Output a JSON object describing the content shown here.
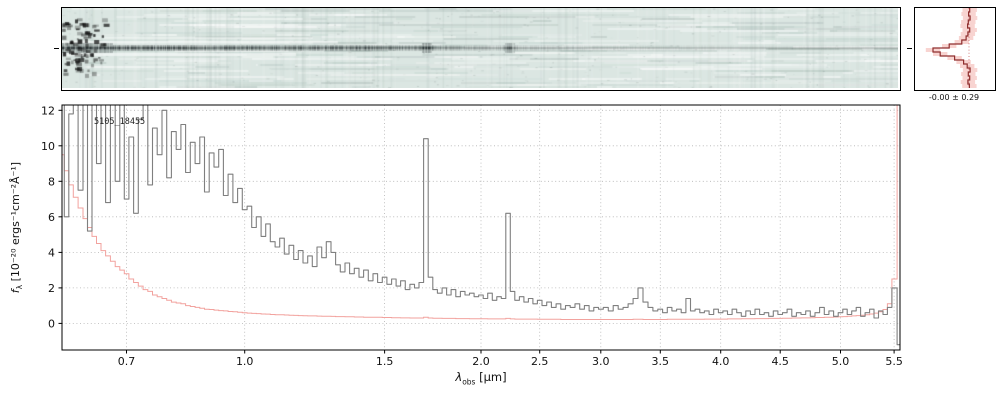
{
  "colors": {
    "spectrum": "#7f7f7f",
    "uncertainty": "#f2a29e",
    "profile_line": "#8f2f2f",
    "profile_fill": "#f6c6c2",
    "profile_zero": "#cc7070",
    "heatmap_bg": "#dbe6e2",
    "heatmap_dark": "#20282a",
    "grid": "#b3b3b3",
    "spine": "#000000"
  },
  "labels": {
    "xlabel": {
      "sym": "λ",
      "sub": "obs",
      "units": " [μm]"
    },
    "ylabel": {
      "sym": "f",
      "sub": "λ",
      "units": " [10⁻²⁰ ergs⁻¹cm⁻²Å⁻¹]"
    }
  },
  "chart_data": [
    {
      "type": "heatmap",
      "name": "2d-spectrum",
      "description": "Drizzled 2D slitless prism spectrum; pale teal background noise with dark source trace along the central row, strongest from 0.6–2.5 um, dark knots at the emission-line wavelengths and heavy dark residuals at the blue edge",
      "x_range_um": [
        0.6,
        5.55
      ],
      "trace_center_row_frac": 0.5,
      "emission_knots_um": [
        1.72,
        2.25
      ]
    },
    {
      "type": "line",
      "title": "5105_18455",
      "xlabel": "lambda_obs [um]",
      "ylabel": "f_lambda [1e-20 erg s^-1 cm^-2 A^-1]",
      "xlim": [
        0.6,
        5.55
      ],
      "ylim": [
        -1.5,
        12.3
      ],
      "x_ticks": [
        0.7,
        1.0,
        1.5,
        2.0,
        2.5,
        3.0,
        3.5,
        4.0,
        4.5,
        5.0,
        5.5
      ],
      "y_ticks": [
        0,
        2,
        4,
        6,
        8,
        10,
        12
      ],
      "x_scale_anchors": {
        "wavelength": [
          0.6,
          0.7,
          1.0,
          1.5,
          2.0,
          2.5,
          3.0,
          3.5,
          4.0,
          4.5,
          5.0,
          5.5,
          5.55
        ],
        "fraction": [
          0.0,
          0.077,
          0.218,
          0.385,
          0.5,
          0.57,
          0.643,
          0.714,
          0.786,
          0.857,
          0.929,
          0.993,
          1.0
        ]
      },
      "series": [
        {
          "name": "flux",
          "color_key": "spectrum",
          "x": [
            0.6,
            0.607,
            0.614,
            0.621,
            0.629,
            0.636,
            0.643,
            0.65,
            0.657,
            0.664,
            0.671,
            0.679,
            0.686,
            0.693,
            0.7,
            0.712,
            0.724,
            0.736,
            0.748,
            0.76,
            0.772,
            0.784,
            0.796,
            0.808,
            0.82,
            0.832,
            0.844,
            0.856,
            0.868,
            0.88,
            0.892,
            0.904,
            0.916,
            0.928,
            0.94,
            0.952,
            0.964,
            0.976,
            0.988,
            1.0,
            1.017,
            1.033,
            1.05,
            1.067,
            1.083,
            1.1,
            1.117,
            1.133,
            1.15,
            1.167,
            1.183,
            1.2,
            1.217,
            1.233,
            1.25,
            1.267,
            1.283,
            1.3,
            1.317,
            1.333,
            1.35,
            1.367,
            1.383,
            1.4,
            1.417,
            1.433,
            1.45,
            1.467,
            1.483,
            1.5,
            1.524,
            1.548,
            1.571,
            1.595,
            1.619,
            1.643,
            1.667,
            1.69,
            1.714,
            1.738,
            1.762,
            1.786,
            1.81,
            1.833,
            1.857,
            1.881,
            1.905,
            1.929,
            1.952,
            1.976,
            2.0,
            2.038,
            2.077,
            2.115,
            2.154,
            2.192,
            2.231,
            2.269,
            2.308,
            2.346,
            2.385,
            2.423,
            2.462,
            2.5,
            2.538,
            2.577,
            2.615,
            2.654,
            2.692,
            2.731,
            2.769,
            2.808,
            2.846,
            2.885,
            2.923,
            2.962,
            3.0,
            3.042,
            3.083,
            3.125,
            3.167,
            3.208,
            3.25,
            3.292,
            3.333,
            3.375,
            3.417,
            3.458,
            3.5,
            3.538,
            3.577,
            3.615,
            3.654,
            3.692,
            3.731,
            3.769,
            3.808,
            3.846,
            3.885,
            3.923,
            3.962,
            4.0,
            4.038,
            4.077,
            4.115,
            4.154,
            4.192,
            4.231,
            4.269,
            4.308,
            4.346,
            4.385,
            4.423,
            4.462,
            4.5,
            4.538,
            4.577,
            4.615,
            4.654,
            4.692,
            4.731,
            4.769,
            4.808,
            4.846,
            4.885,
            4.923,
            4.962,
            5.0,
            5.042,
            5.083,
            5.125,
            5.167,
            5.208,
            5.25,
            5.292,
            5.333,
            5.375,
            5.417,
            5.458,
            5.5,
            5.55
          ],
          "y": [
            12.5,
            6.0,
            11.8,
            13.0,
            7.5,
            12.8,
            5.2,
            13.5,
            9.0,
            12.6,
            6.8,
            13.2,
            8.0,
            12.9,
            7.0,
            10.5,
            6.2,
            11.5,
            12.3,
            7.8,
            11.0,
            9.5,
            12.0,
            8.2,
            10.8,
            9.8,
            11.2,
            8.5,
            10.2,
            9.0,
            10.5,
            7.4,
            9.6,
            8.8,
            9.8,
            7.2,
            8.4,
            6.8,
            7.6,
            6.4,
            6.6,
            5.4,
            6.0,
            4.9,
            5.6,
            4.6,
            4.3,
            4.8,
            3.9,
            4.4,
            3.6,
            4.1,
            3.4,
            3.8,
            3.2,
            4.3,
            3.7,
            4.6,
            4.0,
            3.3,
            2.9,
            3.4,
            2.8,
            3.1,
            2.6,
            3.0,
            2.4,
            2.8,
            2.3,
            2.6,
            2.2,
            2.5,
            2.1,
            2.4,
            1.9,
            2.2,
            2.0,
            2.3,
            10.4,
            2.6,
            1.9,
            1.7,
            2.0,
            1.6,
            1.9,
            1.5,
            1.8,
            1.6,
            1.7,
            1.5,
            1.6,
            1.4,
            1.7,
            1.3,
            1.5,
            1.4,
            6.2,
            1.8,
            1.3,
            1.5,
            1.2,
            1.4,
            1.1,
            1.3,
            1.0,
            1.2,
            0.9,
            1.1,
            0.8,
            1.0,
            0.9,
            1.1,
            0.8,
            1.0,
            0.7,
            0.9,
            0.8,
            0.9,
            0.7,
            1.0,
            0.8,
            0.9,
            1.1,
            1.4,
            2.0,
            1.2,
            0.9,
            0.7,
            0.8,
            0.6,
            0.9,
            0.7,
            0.8,
            0.6,
            1.4,
            0.7,
            0.8,
            0.6,
            0.7,
            0.5,
            0.8,
            0.6,
            0.7,
            0.5,
            0.8,
            0.6,
            0.4,
            0.7,
            0.5,
            0.8,
            0.5,
            0.6,
            0.4,
            0.7,
            0.5,
            0.6,
            0.8,
            0.4,
            0.6,
            0.5,
            0.7,
            0.4,
            0.6,
            0.9,
            0.5,
            0.7,
            0.4,
            0.6,
            0.8,
            0.5,
            0.7,
            0.9,
            0.4,
            0.6,
            0.8,
            0.3,
            0.7,
            0.5,
            0.9,
            2.0,
            -1.2
          ]
        },
        {
          "name": "uncertainty",
          "color_key": "uncertainty",
          "y": [
            9.5,
            8.6,
            7.8,
            7.1,
            6.5,
            5.9,
            5.4,
            4.9,
            4.5,
            4.1,
            3.8,
            3.5,
            3.2,
            3.0,
            2.8,
            2.5,
            2.3,
            2.1,
            1.9,
            1.8,
            1.6,
            1.5,
            1.4,
            1.3,
            1.2,
            1.15,
            1.1,
            1.0,
            0.95,
            0.9,
            0.85,
            0.8,
            0.78,
            0.75,
            0.72,
            0.7,
            0.67,
            0.65,
            0.63,
            0.6,
            0.58,
            0.56,
            0.55,
            0.53,
            0.52,
            0.5,
            0.49,
            0.48,
            0.47,
            0.46,
            0.45,
            0.44,
            0.43,
            0.42,
            0.42,
            0.41,
            0.4,
            0.4,
            0.39,
            0.38,
            0.38,
            0.37,
            0.37,
            0.36,
            0.36,
            0.35,
            0.35,
            0.34,
            0.34,
            0.33,
            0.33,
            0.32,
            0.32,
            0.31,
            0.31,
            0.3,
            0.3,
            0.3,
            0.34,
            0.3,
            0.29,
            0.29,
            0.28,
            0.28,
            0.28,
            0.27,
            0.27,
            0.27,
            0.26,
            0.26,
            0.26,
            0.26,
            0.25,
            0.25,
            0.25,
            0.25,
            0.28,
            0.25,
            0.24,
            0.24,
            0.24,
            0.24,
            0.24,
            0.23,
            0.23,
            0.23,
            0.23,
            0.23,
            0.22,
            0.22,
            0.22,
            0.22,
            0.22,
            0.22,
            0.22,
            0.22,
            0.22,
            0.22,
            0.22,
            0.22,
            0.22,
            0.22,
            0.22,
            0.23,
            0.23,
            0.22,
            0.22,
            0.22,
            0.22,
            0.22,
            0.23,
            0.23,
            0.23,
            0.23,
            0.23,
            0.23,
            0.23,
            0.23,
            0.24,
            0.24,
            0.24,
            0.24,
            0.24,
            0.25,
            0.25,
            0.25,
            0.26,
            0.26,
            0.26,
            0.27,
            0.27,
            0.27,
            0.28,
            0.28,
            0.28,
            0.29,
            0.29,
            0.3,
            0.3,
            0.31,
            0.31,
            0.32,
            0.33,
            0.33,
            0.34,
            0.35,
            0.36,
            0.37,
            0.38,
            0.4,
            0.42,
            0.44,
            0.46,
            0.49,
            0.53,
            0.58,
            0.65,
            0.78,
            1.1,
            2.5,
            12.5
          ]
        }
      ]
    },
    {
      "type": "bar",
      "name": "spatial-profile",
      "orientation": "horizontal",
      "stat": "-0.00 ± 0.29",
      "values": [
        -0.02,
        0.01,
        -0.03,
        0.02,
        0.04,
        -0.02,
        0.03,
        0.08,
        0.2,
        0.55,
        1.0,
        0.8,
        0.4,
        0.15,
        0.05,
        -0.03,
        0.02,
        -0.02,
        0.03,
        -0.01
      ],
      "err": 0.2
    }
  ]
}
